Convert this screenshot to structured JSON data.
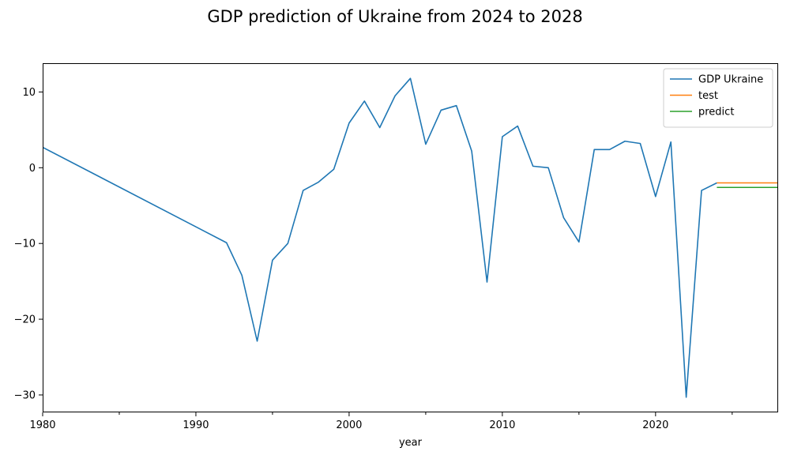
{
  "chart_data": {
    "type": "line",
    "title": "GDP prediction of Ukraine from 2024 to 2028",
    "xlabel": "year",
    "ylabel": "",
    "xlim": [
      1980,
      2028
    ],
    "ylim": [
      -32.3,
      13.8
    ],
    "x_ticks": [
      1980,
      1990,
      2000,
      2010,
      2020
    ],
    "x_minor_ticks": [
      1985,
      1995,
      2005,
      2015,
      2025
    ],
    "y_ticks": [
      10,
      0,
      -10,
      -20,
      -30
    ],
    "y_tick_labels": [
      "10",
      "0",
      "−10",
      "−20",
      "−30"
    ],
    "grid": false,
    "legend_position": "top-right",
    "series": [
      {
        "name": "GDP Ukraine",
        "color": "#1f77b4",
        "x": [
          1980,
          1992,
          1993,
          1994,
          1995,
          1996,
          1997,
          1998,
          1999,
          2000,
          2001,
          2002,
          2003,
          2004,
          2005,
          2006,
          2007,
          2008,
          2009,
          2010,
          2011,
          2012,
          2013,
          2014,
          2015,
          2016,
          2017,
          2018,
          2019,
          2020,
          2021,
          2022,
          2023,
          2024
        ],
        "y": [
          2.7,
          -9.9,
          -14.2,
          -22.9,
          -12.2,
          -10.0,
          -3.0,
          -1.9,
          -0.2,
          5.9,
          8.8,
          5.3,
          9.5,
          11.8,
          3.1,
          7.6,
          8.2,
          2.2,
          -15.1,
          4.1,
          5.5,
          0.2,
          0.0,
          -6.6,
          -9.8,
          2.4,
          2.4,
          3.5,
          3.2,
          -3.8,
          3.4,
          -30.3,
          -3.0,
          -2.0
        ]
      },
      {
        "name": "test",
        "color": "#ff7f0e",
        "x": [
          2024,
          2025,
          2026,
          2027,
          2028
        ],
        "y": [
          -2.0,
          -2.0,
          -2.0,
          -2.0,
          -2.0
        ]
      },
      {
        "name": "predict",
        "color": "#2ca02c",
        "x": [
          2024,
          2025,
          2026,
          2027,
          2028
        ],
        "y": [
          -2.6,
          -2.6,
          -2.6,
          -2.6,
          -2.6
        ]
      }
    ]
  }
}
